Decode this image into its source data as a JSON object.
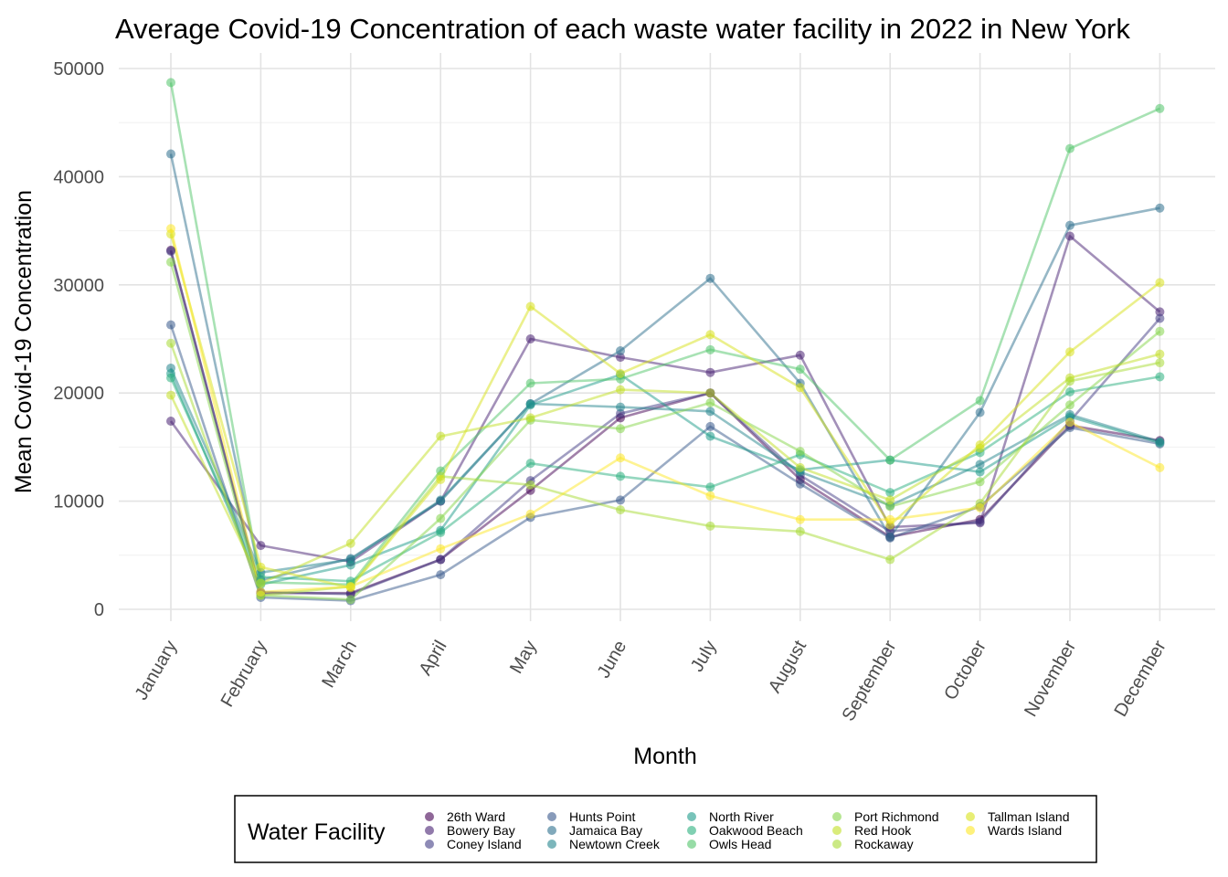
{
  "chart_data": {
    "type": "line",
    "title": "Average Covid-19 Concentration of each waste water facility in 2022 in New York",
    "xlabel": "Month",
    "ylabel": "Mean Covid-19 Concentration",
    "categories": [
      "January",
      "February",
      "March",
      "April",
      "May",
      "June",
      "July",
      "August",
      "September",
      "October",
      "November",
      "December"
    ],
    "ylim": [
      0,
      50000
    ],
    "yticks": [
      0,
      10000,
      20000,
      30000,
      40000,
      50000
    ],
    "grid": true,
    "legend": {
      "title": "Water Facility",
      "position": "bottom",
      "columns": 5
    },
    "series": [
      {
        "name": "26th Ward",
        "color": "#440154",
        "values": [
          33200,
          1500,
          1500,
          4600,
          11000,
          17700,
          20000,
          12000,
          6700,
          8300,
          17000,
          15600
        ]
      },
      {
        "name": "Bowery Bay",
        "color": "#482173",
        "values": [
          17400,
          5900,
          4400,
          10000,
          25000,
          23300,
          21900,
          23500,
          7600,
          8000,
          34500,
          27500
        ]
      },
      {
        "name": "Coney Island",
        "color": "#433E85",
        "values": [
          33100,
          1600,
          1400,
          4600,
          11900,
          18100,
          20000,
          12400,
          7200,
          8100,
          17400,
          26900
        ]
      },
      {
        "name": "Hunts Point",
        "color": "#38598C",
        "values": [
          26300,
          1100,
          800,
          3200,
          8500,
          10100,
          16900,
          11600,
          6600,
          9500,
          16800,
          15300
        ]
      },
      {
        "name": "Jamaica Bay",
        "color": "#2D708E",
        "values": [
          42100,
          2700,
          4700,
          10000,
          19000,
          23900,
          30600,
          20900,
          6700,
          18200,
          35500,
          37100
        ]
      },
      {
        "name": "Newtown Creek",
        "color": "#25858E",
        "values": [
          22300,
          3400,
          4600,
          10100,
          19000,
          18700,
          18300,
          12700,
          9600,
          13400,
          18000,
          15500
        ]
      },
      {
        "name": "North River",
        "color": "#1E9B8A",
        "values": [
          21800,
          2300,
          4100,
          7300,
          18900,
          21700,
          16000,
          12900,
          13800,
          12700,
          17800,
          15400
        ]
      },
      {
        "name": "Oakwood Beach",
        "color": "#2BB07F",
        "values": [
          21400,
          3000,
          2600,
          7100,
          13500,
          12300,
          11300,
          14300,
          10800,
          14500,
          20100,
          21500
        ]
      },
      {
        "name": "Owls Head",
        "color": "#51C56A",
        "values": [
          48700,
          2500,
          2300,
          12800,
          20900,
          21300,
          24000,
          22200,
          13800,
          19300,
          42600,
          46300
        ]
      },
      {
        "name": "Port Richmond",
        "color": "#85D54A",
        "values": [
          32100,
          1300,
          900,
          8400,
          17500,
          16700,
          19100,
          14600,
          9500,
          11800,
          18900,
          25700
        ]
      },
      {
        "name": "Red Hook",
        "color": "#C2DF23",
        "values": [
          19800,
          2400,
          6100,
          16000,
          17700,
          20300,
          20000,
          13100,
          10100,
          14900,
          21400,
          23600
        ]
      },
      {
        "name": "Rockaway",
        "color": "#A8DB34",
        "values": [
          24600,
          1300,
          2100,
          12300,
          11500,
          9200,
          7700,
          7200,
          4600,
          9800,
          21100,
          22800
        ]
      },
      {
        "name": "Tallman Island",
        "color": "#D8E219",
        "values": [
          34700,
          3900,
          2000,
          12000,
          28000,
          21800,
          25400,
          20500,
          7800,
          15200,
          23800,
          30200
        ]
      },
      {
        "name": "Wards Island",
        "color": "#FDE725",
        "values": [
          35200,
          1600,
          2100,
          5600,
          8800,
          14000,
          10500,
          8300,
          8300,
          9400,
          17300,
          13100
        ]
      }
    ]
  }
}
